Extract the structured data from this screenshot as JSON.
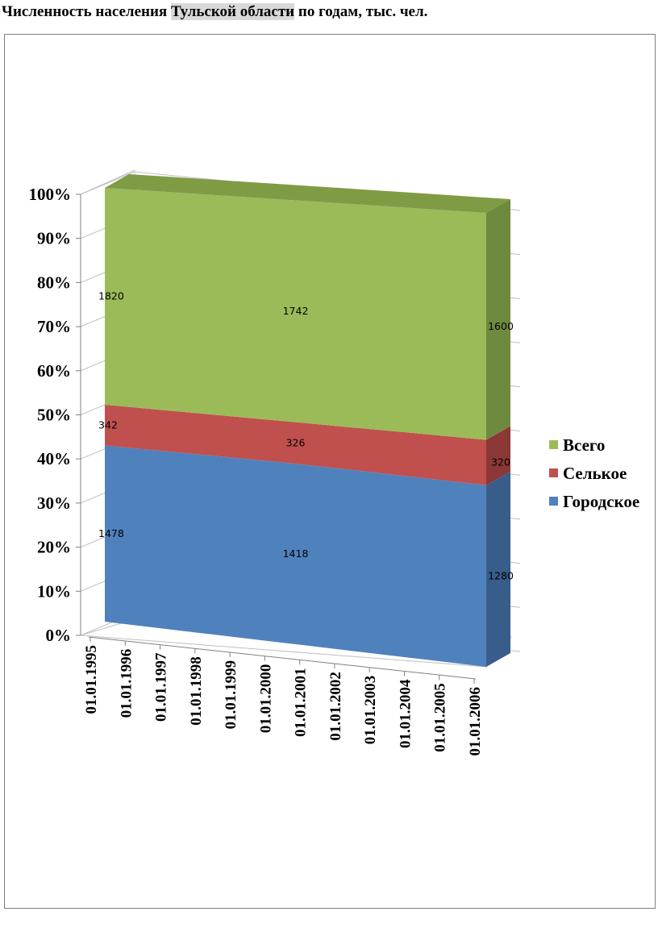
{
  "heading": {
    "before": "Численность населения ",
    "highlight": "Тульской области",
    "after": " по годам, тыс. чел."
  },
  "chart_data": {
    "type": "area",
    "stacked_percent": true,
    "three_d": true,
    "categories": [
      "01.01.1995",
      "01.01.1996",
      "01.01.1997",
      "01.01.1998",
      "01.01.1999",
      "01.01.2000",
      "01.01.2001",
      "01.01.2002",
      "01.01.2003",
      "01.01.2004",
      "01.01.2005",
      "01.01.2006"
    ],
    "series": [
      {
        "name": "Городское",
        "color": "#4f81bd",
        "side_color": "#385d8a",
        "label_points": [
          {
            "index": 0,
            "value": 1478
          },
          {
            "index": 5.5,
            "value": 1418
          },
          {
            "index": 11,
            "value": 1280
          }
        ]
      },
      {
        "name": "Селькое",
        "color": "#c0504d",
        "side_color": "#8c3836",
        "label_points": [
          {
            "index": 0,
            "value": 342
          },
          {
            "index": 5.5,
            "value": 326
          },
          {
            "index": 11,
            "value": 320
          }
        ]
      },
      {
        "name": "Всего",
        "color": "#9bbb59",
        "side_color": "#6e8a3e",
        "top_color": "#7f9c45",
        "label_points": [
          {
            "index": 0,
            "value": 1820
          },
          {
            "index": 5.5,
            "value": 1742
          },
          {
            "index": 11,
            "value": 1600
          }
        ]
      }
    ],
    "y_ticks": [
      "0%",
      "10%",
      "20%",
      "30%",
      "40%",
      "50%",
      "60%",
      "70%",
      "80%",
      "90%",
      "100%"
    ],
    "ylim": [
      0,
      100
    ],
    "legend_position": "right",
    "legend_order": [
      "Всего",
      "Селькое",
      "Городское"
    ],
    "grid": true
  }
}
